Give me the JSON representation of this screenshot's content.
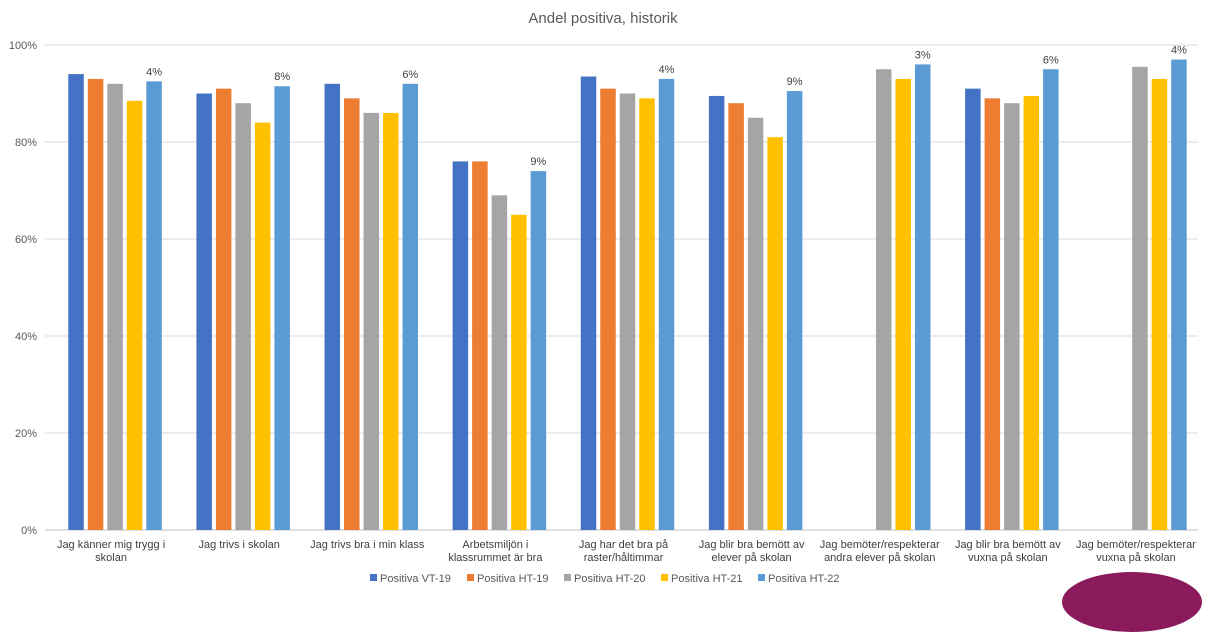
{
  "chart_data": {
    "type": "bar",
    "title": "Andel positiva, historik",
    "xlabel": "",
    "ylabel": "",
    "ylim": [
      0,
      100
    ],
    "yticks": [
      "0%",
      "20%",
      "40%",
      "60%",
      "80%",
      "100%"
    ],
    "grid": true,
    "legend_position": "bottom",
    "categories": [
      [
        "Jag känner mig trygg i",
        "skolan"
      ],
      [
        "Jag trivs i skolan"
      ],
      [
        "Jag trivs bra i min klass"
      ],
      [
        "Arbetsmiljön i",
        "klassrummet är bra"
      ],
      [
        "Jag har det bra på",
        "raster/håltimmar"
      ],
      [
        "Jag blir bra bemött av",
        "elever på skolan"
      ],
      [
        "Jag bemöter/respekterar",
        "andra elever på skolan"
      ],
      [
        "Jag blir bra bemött av",
        "vuxna på skolan"
      ],
      [
        "Jag bemöter/respekterar",
        "vuxna på skolan"
      ]
    ],
    "series": [
      {
        "name": "Positiva VT-19",
        "color": "#4472c4",
        "values": [
          94,
          90,
          92,
          76,
          93.5,
          89.5,
          null,
          91,
          null
        ]
      },
      {
        "name": "Positiva HT-19",
        "color": "#ed7d31",
        "values": [
          93,
          91,
          89,
          76,
          91,
          88,
          null,
          89,
          null
        ]
      },
      {
        "name": "Positiva HT-20",
        "color": "#a5a5a5",
        "values": [
          92,
          88,
          86,
          69,
          90,
          85,
          95,
          88,
          95.5
        ]
      },
      {
        "name": "Positiva HT-21",
        "color": "#ffc000",
        "values": [
          88.5,
          84,
          86,
          65,
          89,
          81,
          93,
          89.5,
          93
        ]
      },
      {
        "name": "Positiva HT-22",
        "color": "#5b9bd5",
        "values": [
          92.5,
          91.5,
          92,
          74,
          93,
          90.5,
          96,
          95,
          97
        ]
      }
    ],
    "annotations": [
      "4%",
      "8%",
      "6%",
      "9%",
      "4%",
      "9%",
      "3%",
      "6%",
      "4%"
    ]
  }
}
